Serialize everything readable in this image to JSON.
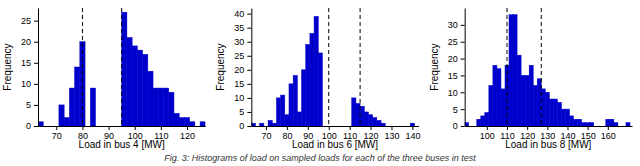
{
  "chart_data": [
    {
      "type": "histogram",
      "xlabel": "Load in bus 4 [MW]",
      "ylabel": "Frequency",
      "xlim": [
        63,
        127
      ],
      "ylim": [
        0,
        28
      ],
      "xticks": [
        70,
        80,
        90,
        100,
        110,
        120
      ],
      "yticks": [
        0,
        5,
        10,
        15,
        20,
        25
      ],
      "vlines": [
        80,
        95
      ],
      "color": "#0000cc",
      "bins": [
        63,
        65,
        67,
        69,
        71,
        73,
        75,
        77,
        79,
        81,
        83,
        85,
        87,
        89,
        91,
        93,
        95,
        97,
        99,
        101,
        103,
        105,
        107,
        109,
        111,
        113,
        115,
        117,
        119,
        121,
        123,
        125,
        127
      ],
      "values": [
        1,
        0,
        0,
        0,
        5,
        2,
        9,
        14,
        20,
        0,
        9,
        0,
        0,
        0,
        0,
        0,
        27,
        21,
        19,
        18,
        17,
        13,
        9,
        9,
        9,
        8,
        3,
        2,
        2,
        1,
        0,
        1
      ]
    },
    {
      "type": "histogram",
      "xlabel": "Load in bus 6 [MW]",
      "ylabel": "Frequency",
      "xlim": [
        63,
        143
      ],
      "ylim": [
        0,
        42
      ],
      "xticks": [
        70,
        80,
        90,
        100,
        110,
        120,
        130,
        140
      ],
      "yticks": [
        0,
        5,
        10,
        15,
        20,
        25,
        30,
        35,
        40
      ],
      "vlines": [
        100,
        115
      ],
      "color": "#0000cc",
      "bins": [
        63,
        65,
        67,
        69,
        71,
        73,
        75,
        77,
        79,
        81,
        83,
        85,
        87,
        89,
        91,
        93,
        95,
        97,
        99,
        101,
        103,
        105,
        107,
        109,
        111,
        113,
        115,
        117,
        119,
        121,
        123,
        125,
        127,
        129,
        131,
        133,
        135,
        137,
        139,
        141,
        143
      ],
      "values": [
        1,
        0,
        1,
        0,
        2,
        1,
        10,
        11,
        4,
        15,
        18,
        5,
        20,
        29,
        33,
        39,
        26,
        0,
        0,
        0,
        0,
        0,
        0,
        0,
        10,
        8,
        7,
        5,
        4,
        3,
        2,
        1,
        0,
        0,
        0,
        0,
        0,
        0,
        1,
        0
      ]
    },
    {
      "type": "histogram",
      "xlabel": "Load in bus 8 [MW]",
      "ylabel": "Frequency",
      "xlim": [
        89,
        172
      ],
      "ylim": [
        0,
        35
      ],
      "xticks": [
        100,
        110,
        120,
        130,
        140,
        150,
        160
      ],
      "yticks": [
        0,
        5,
        10,
        15,
        20,
        25,
        30
      ],
      "vlines": [
        110,
        127
      ],
      "color": "#0000cc",
      "bins": [
        89,
        91,
        93,
        95,
        97,
        99,
        101,
        103,
        105,
        107,
        109,
        111,
        113,
        115,
        117,
        119,
        121,
        123,
        125,
        127,
        129,
        131,
        133,
        135,
        137,
        139,
        141,
        143,
        145,
        147,
        149,
        151,
        153,
        155,
        157,
        159,
        161,
        163,
        165,
        167,
        169,
        171
      ],
      "values": [
        1,
        0,
        0,
        2,
        3,
        4,
        12,
        18,
        17,
        11,
        18,
        33,
        33,
        21,
        15,
        15,
        18,
        12,
        14,
        11,
        10,
        8,
        8,
        7,
        5,
        5,
        3,
        2,
        2,
        1,
        1,
        1,
        0,
        0,
        0,
        2,
        2,
        1,
        0,
        0,
        1
      ]
    }
  ],
  "caption": "Fig. 3: Histograms of load on sampled loads for each of the three buses in test"
}
